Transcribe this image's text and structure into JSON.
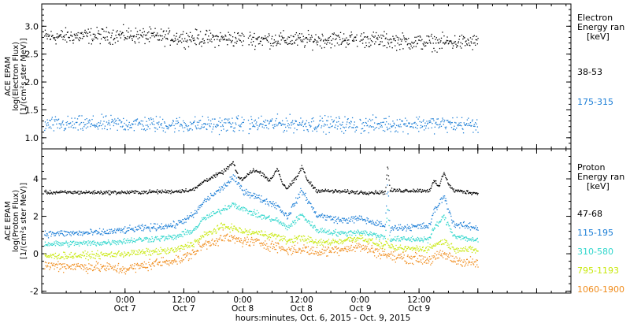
{
  "chart_data": [
    {
      "type": "scatter",
      "panel": "electron",
      "ylabel_lines": [
        "ACE EPAM",
        "log(Electron Flux)",
        "[1/(cm²s ster MeV)]"
      ],
      "ylim": [
        0.8,
        3.4
      ],
      "y_ticks": [
        1.0,
        1.5,
        2.0,
        2.5,
        3.0
      ],
      "y_tick_labels": [
        "1.0",
        "1.5",
        "2.0",
        "2.5",
        "3.0"
      ],
      "legend_title_lines": [
        "Electron",
        "Energy ran",
        "[keV]"
      ],
      "series": [
        {
          "name": "38-53",
          "color": "#000000",
          "profile": [
            [
              -15,
              2.82
            ],
            [
              0,
              2.85
            ],
            [
              12,
              2.8
            ],
            [
              24,
              2.78
            ],
            [
              36,
              2.76
            ],
            [
              48,
              2.78
            ],
            [
              60,
              2.72
            ],
            [
              72,
              2.72
            ]
          ],
          "scatter": 0.07
        },
        {
          "name": "175-315",
          "color": "#1c7ed6",
          "profile": [
            [
              -15,
              1.24
            ],
            [
              0,
              1.26
            ],
            [
              12,
              1.24
            ],
            [
              24,
              1.25
            ],
            [
              36,
              1.26
            ],
            [
              48,
              1.24
            ],
            [
              60,
              1.26
            ],
            [
              72,
              1.24
            ]
          ],
          "scatter": 0.07
        }
      ]
    },
    {
      "type": "scatter",
      "panel": "proton",
      "ylabel_lines": [
        "ACE EPAM",
        "log(Proton Flux)",
        "[1/(cm²s ster MeV)]"
      ],
      "ylim": [
        -2.1,
        5.6
      ],
      "y_ticks": [
        -2,
        0,
        2,
        4
      ],
      "y_tick_labels": [
        "-2",
        "0",
        "2",
        "4"
      ],
      "legend_title_lines": [
        "Proton",
        "Energy ran",
        "[keV]"
      ],
      "series": [
        {
          "name": "47-68",
          "color": "#000000",
          "profile": [
            [
              -15,
              3.3
            ],
            [
              0,
              3.3
            ],
            [
              10,
              3.35
            ],
            [
              14,
              3.45
            ],
            [
              16,
              3.9
            ],
            [
              20,
              4.4
            ],
            [
              22,
              4.9
            ],
            [
              23,
              4.1
            ],
            [
              24,
              4.0
            ],
            [
              26,
              4.5
            ],
            [
              28,
              4.3
            ],
            [
              29.5,
              3.9
            ],
            [
              31,
              4.6
            ],
            [
              32,
              3.8
            ],
            [
              33,
              3.5
            ],
            [
              35,
              4.1
            ],
            [
              36,
              4.7
            ],
            [
              37,
              4.0
            ],
            [
              39,
              3.4
            ],
            [
              48,
              3.3
            ],
            [
              53,
              3.3
            ],
            [
              53.5,
              4.7
            ],
            [
              54,
              3.4
            ],
            [
              62,
              3.4
            ],
            [
              63,
              3.9
            ],
            [
              64,
              3.6
            ],
            [
              65,
              4.4
            ],
            [
              66,
              3.7
            ],
            [
              67,
              3.4
            ],
            [
              72,
              3.25
            ]
          ],
          "scatter": 0.05
        },
        {
          "name": "115-195",
          "color": "#1c7ed6",
          "profile": [
            [
              -15,
              1.1
            ],
            [
              -5,
              1.15
            ],
            [
              4,
              1.4
            ],
            [
              10,
              1.55
            ],
            [
              14,
              2.1
            ],
            [
              16,
              2.8
            ],
            [
              20,
              3.6
            ],
            [
              22,
              4.1
            ],
            [
              24,
              3.4
            ],
            [
              28,
              2.9
            ],
            [
              31,
              2.6
            ],
            [
              33,
              2.0
            ],
            [
              36,
              3.4
            ],
            [
              39,
              2.1
            ],
            [
              44,
              1.8
            ],
            [
              48,
              1.9
            ],
            [
              53,
              1.5
            ],
            [
              53.5,
              3.8
            ],
            [
              54,
              1.4
            ],
            [
              62,
              1.5
            ],
            [
              63,
              2.3
            ],
            [
              65,
              3.1
            ],
            [
              67,
              1.6
            ],
            [
              72,
              1.4
            ]
          ],
          "scatter": 0.09
        },
        {
          "name": "310-580",
          "color": "#2fd6cc",
          "profile": [
            [
              -15,
              0.55
            ],
            [
              -5,
              0.6
            ],
            [
              4,
              0.8
            ],
            [
              10,
              0.9
            ],
            [
              14,
              1.3
            ],
            [
              16,
              1.9
            ],
            [
              20,
              2.4
            ],
            [
              22,
              2.7
            ],
            [
              24,
              2.4
            ],
            [
              28,
              2.0
            ],
            [
              31,
              1.8
            ],
            [
              33,
              1.4
            ],
            [
              36,
              2.1
            ],
            [
              39,
              1.3
            ],
            [
              44,
              1.1
            ],
            [
              48,
              1.2
            ],
            [
              53,
              0.9
            ],
            [
              53.5,
              2.5
            ],
            [
              54,
              0.8
            ],
            [
              62,
              0.8
            ],
            [
              63,
              1.4
            ],
            [
              65,
              2.0
            ],
            [
              67,
              1.0
            ],
            [
              72,
              0.7
            ]
          ],
          "scatter": 0.08
        },
        {
          "name": "795-1193",
          "color": "#c8e80c",
          "profile": [
            [
              -15,
              -0.1
            ],
            [
              -5,
              -0.05
            ],
            [
              4,
              0.1
            ],
            [
              10,
              0.2
            ],
            [
              14,
              0.6
            ],
            [
              16,
              1.0
            ],
            [
              20,
              1.5
            ],
            [
              22,
              1.4
            ],
            [
              24,
              1.2
            ],
            [
              28,
              1.1
            ],
            [
              31,
              0.95
            ],
            [
              33,
              0.7
            ],
            [
              36,
              0.9
            ],
            [
              39,
              0.6
            ],
            [
              44,
              0.7
            ],
            [
              48,
              0.9
            ],
            [
              53,
              0.4
            ],
            [
              53.5,
              0.8
            ],
            [
              54,
              0.3
            ],
            [
              62,
              0.3
            ],
            [
              63,
              0.5
            ],
            [
              65,
              0.7
            ],
            [
              67,
              0.3
            ],
            [
              72,
              0.2
            ]
          ],
          "scatter": 0.09
        },
        {
          "name": "1060-1900",
          "color": "#f08c1c",
          "profile": [
            [
              -15,
              -0.6
            ],
            [
              -5,
              -0.7
            ],
            [
              0,
              -0.8
            ],
            [
              4,
              -0.6
            ],
            [
              8,
              -0.4
            ],
            [
              12,
              -0.2
            ],
            [
              14,
              0.1
            ],
            [
              16,
              0.5
            ],
            [
              20,
              0.9
            ],
            [
              22,
              0.8
            ],
            [
              24,
              0.7
            ],
            [
              28,
              0.6
            ],
            [
              31,
              0.4
            ],
            [
              33,
              0.2
            ],
            [
              36,
              0.3
            ],
            [
              39,
              0.1
            ],
            [
              44,
              0.3
            ],
            [
              48,
              0.4
            ],
            [
              53,
              0.0
            ],
            [
              54,
              -0.1
            ],
            [
              62,
              -0.3
            ],
            [
              65,
              0.0
            ],
            [
              67,
              -0.3
            ],
            [
              72,
              -0.5
            ]
          ],
          "scatter": 0.14
        }
      ]
    }
  ],
  "x_axis": {
    "xlim": [
      -17,
      91
    ],
    "ticks": [
      0,
      12,
      24,
      36,
      48,
      60,
      72,
      84
    ],
    "tick_time_labels": [
      "0:00",
      "12:00",
      "0:00",
      "12:00",
      "0:00",
      "12:00"
    ],
    "tick_date_labels": [
      "Oct 7",
      "Oct 7",
      "Oct 8",
      "Oct 8",
      "Oct 9",
      "Oct 9"
    ],
    "label_tick_positions": [
      0,
      12,
      24,
      36,
      48,
      60
    ],
    "xlabel": "hours:minutes, Oct.  6, 2015 - Oct.  9, 2015",
    "data_start": -16.5,
    "data_end": 72
  }
}
